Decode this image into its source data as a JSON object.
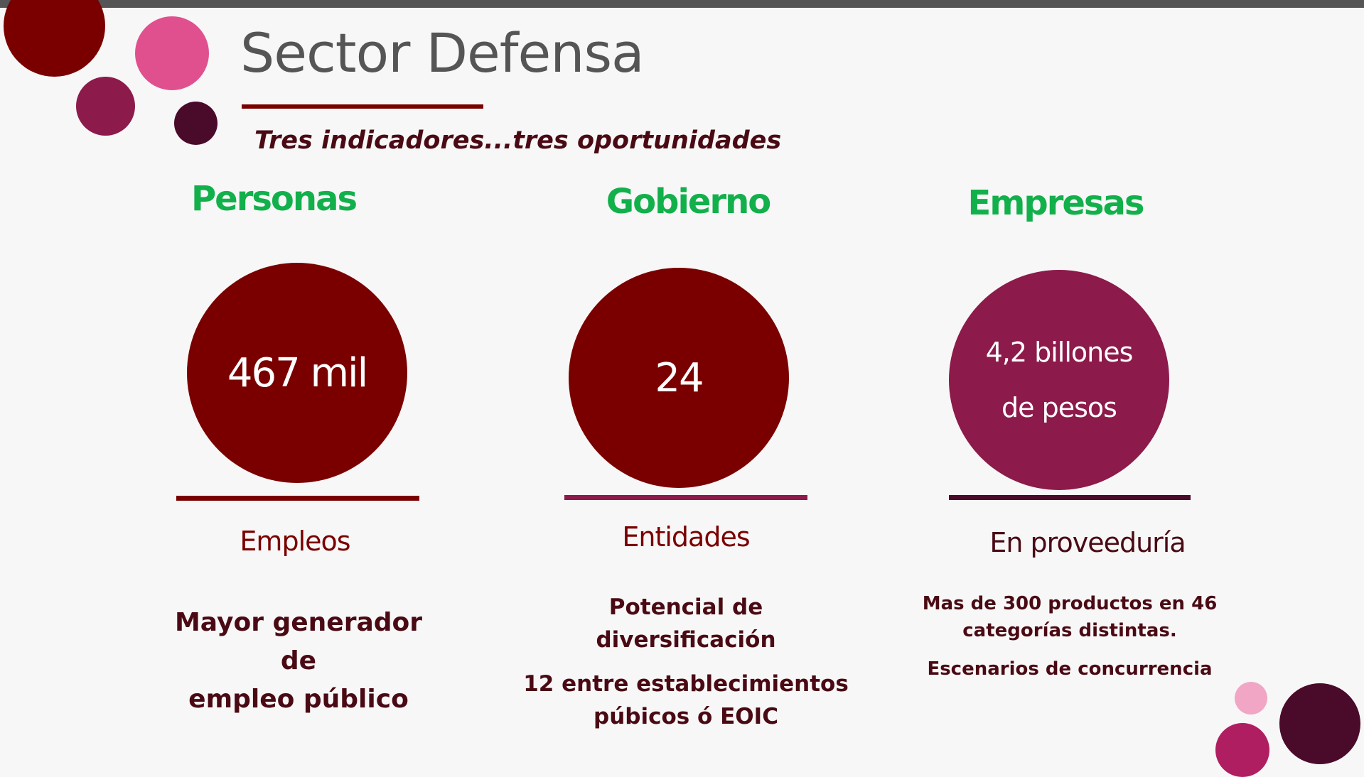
{
  "title": "Sector Defensa",
  "subtitle": "Tres indicadores...tres oportunidades",
  "colors": {
    "maroon": "#7a0000",
    "green": "#12b04b",
    "plum": "#8c1a4a",
    "dark_text": "#4a0a14",
    "gray": "#555555"
  },
  "columns": [
    {
      "category": "Personas",
      "value": "467 mil",
      "label": "Empleos",
      "description": [
        "Mayor generador de",
        "empleo público"
      ]
    },
    {
      "category": "Gobierno",
      "value": "24",
      "label": "Entidades",
      "description": [
        "Potencial de diversificación",
        "12 entre establecimientos",
        "púbicos ó EOIC"
      ]
    },
    {
      "category": "Empresas",
      "value_lines": [
        "4,2 billones",
        "de pesos"
      ],
      "label": "En proveeduría",
      "description": [
        "Mas de 300 productos en 46",
        "categorías distintas.",
        "Escenarios de concurrencia"
      ]
    }
  ]
}
